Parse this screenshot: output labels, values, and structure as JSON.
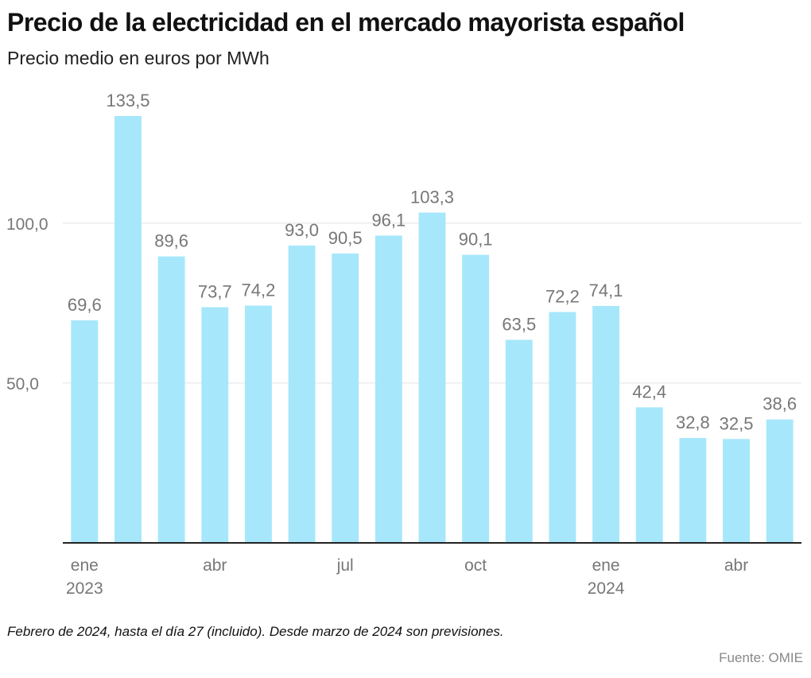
{
  "header": {
    "title": "Precio de la electricidad en el mercado mayorista español",
    "subtitle": "Precio medio en euros por MWh"
  },
  "footer": {
    "note": "Febrero de 2024, hasta el día 27 (incluido). Desde marzo de 2024 son previsiones.",
    "source": "Fuente: OMIE"
  },
  "colors": {
    "bar": "#a6e7fb",
    "grid": "#e3e3e3",
    "axis": "#222222",
    "label": "#777777"
  },
  "chart_data": {
    "type": "bar",
    "categories": [
      "2023-01",
      "2023-02",
      "2023-03",
      "2023-04",
      "2023-05",
      "2023-06",
      "2023-07",
      "2023-08",
      "2023-09",
      "2023-10",
      "2023-11",
      "2023-12",
      "2024-01",
      "2024-02",
      "2024-03",
      "2024-04",
      "2024-05"
    ],
    "values": [
      69.6,
      133.5,
      89.6,
      73.7,
      74.2,
      93.0,
      90.5,
      96.1,
      103.3,
      90.1,
      63.5,
      72.2,
      74.1,
      42.4,
      32.8,
      32.5,
      38.6
    ],
    "value_labels": [
      "69,6",
      "133,5",
      "89,6",
      "73,7",
      "74,2",
      "93,0",
      "90,5",
      "96,1",
      "103,3",
      "90,1",
      "63,5",
      "72,2",
      "74,1",
      "42,4",
      "32,8",
      "32,5",
      "38,6"
    ],
    "yticks": [
      50,
      100
    ],
    "ytick_labels": [
      "50,0",
      "100,0"
    ],
    "ylim": [
      0,
      133.5
    ],
    "xticks": [
      {
        "index": 0,
        "line1": "ene",
        "line2": "2023"
      },
      {
        "index": 3,
        "line1": "abr",
        "line2": ""
      },
      {
        "index": 6,
        "line1": "jul",
        "line2": ""
      },
      {
        "index": 9,
        "line1": "oct",
        "line2": ""
      },
      {
        "index": 12,
        "line1": "ene",
        "line2": "2024"
      },
      {
        "index": 15,
        "line1": "abr",
        "line2": ""
      }
    ],
    "grid": true
  }
}
